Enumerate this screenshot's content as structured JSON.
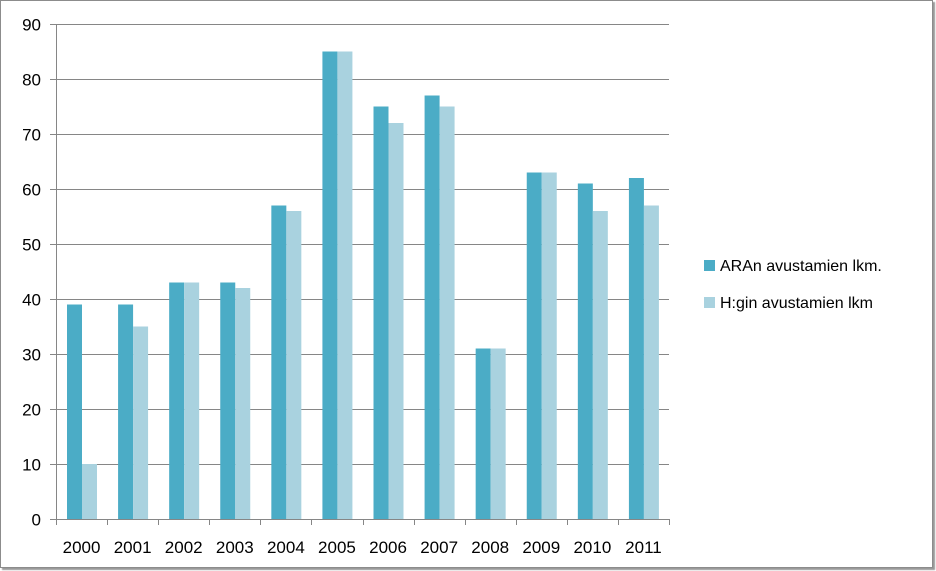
{
  "chart_data": {
    "type": "bar",
    "title": "",
    "xlabel": "",
    "ylabel": "",
    "categories": [
      "2000",
      "2001",
      "2002",
      "2003",
      "2004",
      "2005",
      "2006",
      "2007",
      "2008",
      "2009",
      "2010",
      "2011"
    ],
    "series": [
      {
        "name": "ARAn avustamien lkm.",
        "color": "#4BACC6",
        "values": [
          39,
          39,
          43,
          43,
          57,
          85,
          75,
          77,
          31,
          63,
          61,
          62
        ]
      },
      {
        "name": "H:gin avustamien lkm",
        "color": "#A9D2DF",
        "values": [
          10,
          35,
          43,
          42,
          56,
          85,
          72,
          75,
          31,
          63,
          56,
          57
        ]
      }
    ],
    "ylim": [
      0,
      90
    ],
    "yticks": [
      "0",
      "10",
      "20",
      "30",
      "40",
      "50",
      "60",
      "70",
      "80",
      "90"
    ],
    "grid": true,
    "legend_position": "right"
  }
}
